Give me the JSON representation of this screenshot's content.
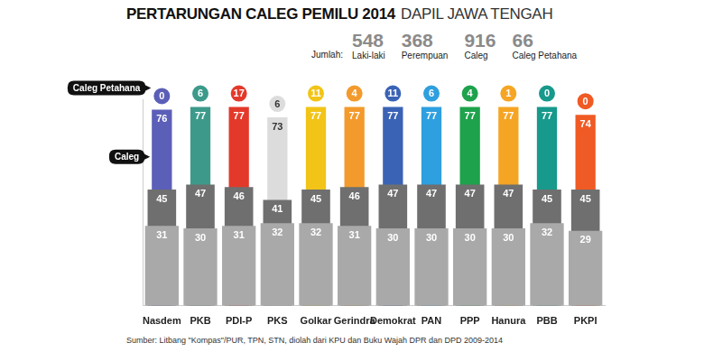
{
  "chart_data": {
    "type": "bar",
    "title": "PERTARUNGAN CALEG PEMILU 2014",
    "subtitle": "DAPIL JAWA TENGAH",
    "summary": {
      "label": "Jumlah:",
      "items": [
        {
          "label": "Laki-laki",
          "value": 548
        },
        {
          "label": "Perempuan",
          "value": 368
        },
        {
          "label": "Caleg",
          "value": 916
        },
        {
          "label": "Caleg Petahana",
          "value": 66
        }
      ]
    },
    "categories": [
      "Nasdem",
      "PKB",
      "PDI-P",
      "PKS",
      "Golkar",
      "Gerindra",
      "Demokrat",
      "PAN",
      "PPP",
      "Hanura",
      "PBB",
      "PKPI"
    ],
    "series": [
      {
        "name": "Caleg",
        "colors": [
          "#5b5fb8",
          "#3d9a8b",
          "#e3392b",
          "#dcdcdc",
          "#f2c417",
          "#f39a2c",
          "#3a63b6",
          "#2e9fdf",
          "#1ea24c",
          "#f5a524",
          "#17998c",
          "#f05a24"
        ],
        "values": [
          76,
          77,
          77,
          73,
          77,
          77,
          77,
          77,
          77,
          77,
          77,
          74
        ]
      },
      {
        "name": "Laki-laki",
        "color": "#6f6f6f",
        "values": [
          45,
          47,
          46,
          41,
          45,
          46,
          47,
          47,
          47,
          47,
          45,
          45
        ]
      },
      {
        "name": "Perempuan",
        "color": "#a9a9a9",
        "values": [
          31,
          30,
          31,
          32,
          32,
          31,
          30,
          30,
          30,
          30,
          32,
          29
        ]
      }
    ],
    "petahana": {
      "name": "Caleg Petahana",
      "values": [
        0,
        6,
        17,
        6,
        11,
        4,
        11,
        6,
        4,
        1,
        0,
        0
      ]
    },
    "annotations": [
      "Caleg Petahana",
      "Caleg"
    ],
    "source": "Sumber: Litbang \"Kompas\"/PUR, TPN, STN,  diolah dari KPU dan Buku Wajah DPR dan DPD 2009-2014",
    "ylim": [
      0,
      80
    ],
    "grid": false,
    "data_labels": true,
    "tick_labels": "x",
    "stacked": false
  }
}
